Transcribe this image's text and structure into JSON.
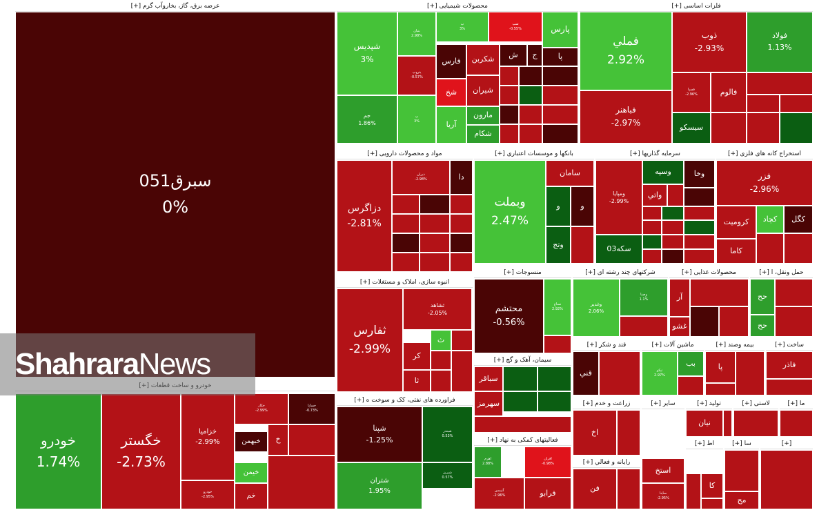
{
  "chart_data": {
    "type": "treemap",
    "title": "",
    "colors": {
      "deep_red": "#4a0505",
      "red": "#b31217",
      "bright_red": "#e0131b",
      "dark_green": "#0b5e12",
      "green": "#2e9e2c",
      "light_green": "#45c238"
    },
    "sectors": [
      {
        "name": "عرضه برق، گاز، بخاروآب گرم [+]",
        "tiles": [
          {
            "symbol": "سبرق051",
            "change": "0%"
          }
        ]
      },
      {
        "name": "محصولات شیمیایی [+]",
        "tiles": [
          {
            "symbol": "شپدیس",
            "change": "3%"
          },
          {
            "symbol": "جم",
            "change": "1.86%"
          },
          {
            "symbol": "پارس",
            "change": ""
          },
          {
            "symbol": "فارس",
            "change": ""
          },
          {
            "symbol": "شکربن",
            "change": ""
          },
          {
            "symbol": "شیران",
            "change": ""
          },
          {
            "symbol": "مارون",
            "change": ""
          },
          {
            "symbol": "آریا",
            "change": ""
          },
          {
            "symbol": "شکام",
            "change": ""
          },
          {
            "symbol": "شخ",
            "change": ""
          },
          {
            "symbol": "ش",
            "change": ""
          },
          {
            "symbol": "ج",
            "change": ""
          },
          {
            "symbol": "پا",
            "change": ""
          },
          {
            "symbol": "بنیان",
            "change": "2.98%"
          },
          {
            "symbol": "پ",
            "change": "3%"
          },
          {
            "symbol": "شپ",
            "change": "-0.55%"
          },
          {
            "symbol": "پتروپ",
            "change": "-0.57%"
          },
          {
            "symbol": "پ",
            "change": "3%"
          }
        ]
      },
      {
        "name": "فلزات اساسی [+]",
        "tiles": [
          {
            "symbol": "فملي",
            "change": "2.92%"
          },
          {
            "symbol": "فباهنر",
            "change": "-2.97%"
          },
          {
            "symbol": "ذوب",
            "change": "-2.93%"
          },
          {
            "symbol": "فولاد",
            "change": "1.13%"
          },
          {
            "symbol": "فالوم",
            "change": ""
          },
          {
            "symbol": "سیسکو",
            "change": ""
          },
          {
            "symbol": "فسپا",
            "change": "-2.96%"
          }
        ]
      },
      {
        "name": "مواد و محصولات دارویی [+]",
        "tiles": [
          {
            "symbol": "دزاگرس",
            "change": "-2.81%"
          },
          {
            "symbol": "دا",
            "change": ""
          },
          {
            "symbol": "دیران",
            "change": "-2.98%"
          }
        ]
      },
      {
        "name": "بانکها و موسسات اعتباری [+]",
        "tiles": [
          {
            "symbol": "وبملت",
            "change": "2.47%"
          },
          {
            "symbol": "سامان",
            "change": ""
          },
          {
            "symbol": "و",
            "change": ""
          },
          {
            "symbol": "و",
            "change": ""
          },
          {
            "symbol": "وتج",
            "change": ""
          }
        ]
      },
      {
        "name": "سرمایه گذاریها [+]",
        "tiles": [
          {
            "symbol": "ومپایا",
            "change": "-2.99%"
          },
          {
            "symbol": "وسپه",
            "change": ""
          },
          {
            "symbol": "وخا",
            "change": ""
          },
          {
            "symbol": "واتي",
            "change": ""
          },
          {
            "symbol": "سکه03",
            "change": ""
          }
        ]
      },
      {
        "name": "استخراج کانه های فلزی [+]",
        "tiles": [
          {
            "symbol": "فزر",
            "change": "-2.96%"
          },
          {
            "symbol": "کرومیت",
            "change": ""
          },
          {
            "symbol": "کچاد",
            "change": ""
          },
          {
            "symbol": "کگل",
            "change": ""
          },
          {
            "symbol": "کاما",
            "change": ""
          }
        ]
      },
      {
        "name": "انبوه سازی، املاک و مستغلات [+]",
        "tiles": [
          {
            "symbol": "ثفارس",
            "change": "-2.99%"
          },
          {
            "symbol": "ثشاهد",
            "change": "-2.05%"
          },
          {
            "symbol": "ث",
            "change": ""
          },
          {
            "symbol": "کر",
            "change": ""
          },
          {
            "symbol": "ثا",
            "change": ""
          }
        ]
      },
      {
        "name": "منسوجات [+]",
        "tiles": [
          {
            "symbol": "محتشم",
            "change": "-0.56%"
          },
          {
            "symbol": "نساج",
            "change": "2.92%"
          }
        ]
      },
      {
        "name": "شرکتهای چند رشته ای [+]",
        "tiles": [
          {
            "symbol": "وغدیر",
            "change": "2.06%"
          },
          {
            "symbol": "وصنا",
            "change": "1.1%"
          }
        ]
      },
      {
        "name": "محصولات غذایی [+]",
        "tiles": [
          {
            "symbol": "آر",
            "change": ""
          },
          {
            "symbol": "غشو",
            "change": ""
          }
        ]
      },
      {
        "name": "حمل ونقل، ا [+]",
        "tiles": [
          {
            "symbol": "حح",
            "change": ""
          },
          {
            "symbol": "حح",
            "change": ""
          }
        ]
      },
      {
        "name": "سیمان، آهک و گچ [+]",
        "tiles": [
          {
            "symbol": "سباقر",
            "change": ""
          },
          {
            "symbol": "سهرمز",
            "change": ""
          }
        ]
      },
      {
        "name": "قند و شکر [+]",
        "tiles": [
          {
            "symbol": "قني",
            "change": ""
          }
        ]
      },
      {
        "name": "ماشین آلات [+]",
        "tiles": [
          {
            "symbol": "بب",
            "change": ""
          },
          {
            "symbol": "تپکو",
            "change": "2.97%"
          }
        ]
      },
      {
        "name": "بیمه وصند [+]",
        "tiles": [
          {
            "symbol": "پا",
            "change": ""
          }
        ]
      },
      {
        "name": "ساخت [+]",
        "tiles": [
          {
            "symbol": "فاذر",
            "change": ""
          }
        ]
      },
      {
        "name": "خودرو و ساخت قطعات [+]",
        "tiles": [
          {
            "symbol": "خودرو",
            "change": "1.74%"
          },
          {
            "symbol": "خگستر",
            "change": "-2.73%"
          },
          {
            "symbol": "خزامیا",
            "change": "-2.99%"
          },
          {
            "symbol": "خبهمن",
            "change": ""
          },
          {
            "symbol": "خیمن",
            "change": ""
          },
          {
            "symbol": "خم",
            "change": ""
          },
          {
            "symbol": "خ",
            "change": ""
          },
          {
            "symbol": "خودرو",
            "change": "-2.95%"
          },
          {
            "symbol": "خساپا",
            "change": "-0.73%"
          },
          {
            "symbol": "خکار",
            "change": "-2.99%"
          }
        ]
      },
      {
        "name": "فراورده های نفتی، کک و سوخت ه [+]",
        "tiles": [
          {
            "symbol": "شپنا",
            "change": "-1.25%"
          },
          {
            "symbol": "شتران",
            "change": "1.95%"
          },
          {
            "symbol": "شبندر",
            "change": "0.53%"
          },
          {
            "symbol": "شبریز",
            "change": "0.57%"
          }
        ]
      },
      {
        "name": "فعالیتهای کمکی به نهاد [+]",
        "tiles": [
          {
            "symbol": "فرابو",
            "change": ""
          },
          {
            "symbol": "اهرم",
            "change": "2.88%"
          },
          {
            "symbol": "افران",
            "change": "-0.98%"
          },
          {
            "symbol": "آتیمس",
            "change": "-2.96%"
          }
        ]
      },
      {
        "name": "زراعت و خدم [+]",
        "tiles": [
          {
            "symbol": "اخ",
            "change": ""
          }
        ]
      },
      {
        "name": "سایر [+]",
        "tiles": [
          {
            "symbol": "استخ",
            "change": ""
          },
          {
            "symbol": "ساینا",
            "change": "-2.95%"
          }
        ]
      },
      {
        "name": "تولید [+]",
        "tiles": [
          {
            "symbol": "نیان",
            "change": ""
          }
        ]
      },
      {
        "name": "لاستی [+]",
        "tiles": []
      },
      {
        "name": "ما [+]",
        "tiles": []
      },
      {
        "name": "رایانه و فعالي [+]",
        "tiles": [
          {
            "symbol": "فن",
            "change": ""
          }
        ]
      },
      {
        "name": "اط [+]",
        "tiles": [
          {
            "symbol": "کا",
            "change": ""
          }
        ]
      },
      {
        "name": "سا [+]",
        "tiles": [
          {
            "symbol": "مح",
            "change": ""
          }
        ]
      },
      {
        "name": "[+]",
        "tiles": []
      }
    ]
  },
  "watermark": {
    "brand_bold": "Shahrara",
    "brand_light": "News"
  }
}
